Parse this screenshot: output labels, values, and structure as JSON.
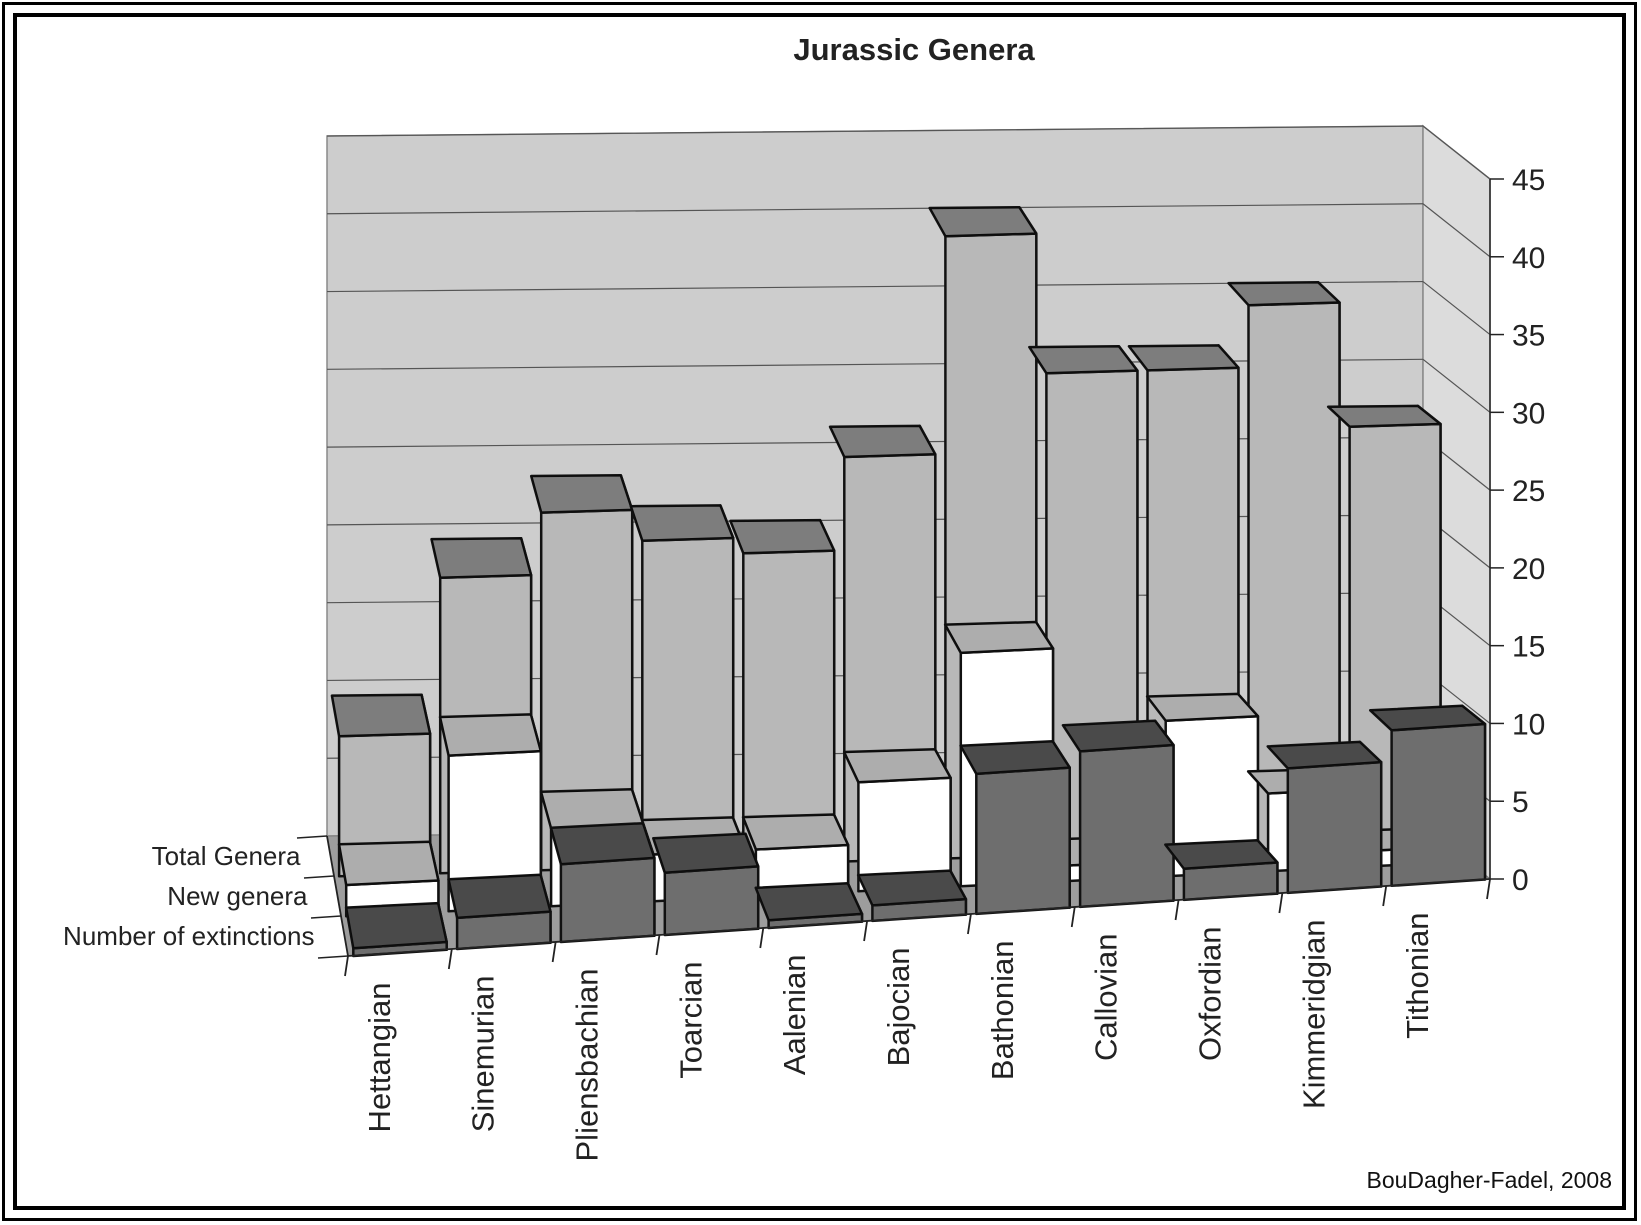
{
  "chart_data": {
    "type": "bar",
    "title": "Jurassic Genera",
    "categories": [
      "Hettangian",
      "Sinemurian",
      "Pliensbachian",
      "Toarcian",
      "Aalenian",
      "Bajocian",
      "Bathonian",
      "Callovian",
      "Oxfordian",
      "Kimmeridgian",
      "Tithonian"
    ],
    "series": [
      {
        "name": "Total Genera",
        "values": [
          9,
          19,
          23,
          21,
          20,
          26,
          40,
          31,
          31,
          35,
          27
        ],
        "color": "#b8b8b8"
      },
      {
        "name": "New genera",
        "values": [
          2,
          10,
          5,
          3,
          3,
          7,
          15,
          1,
          10,
          5,
          1
        ],
        "color": "#ffffff"
      },
      {
        "name": "Number of extinctions",
        "values": [
          0.5,
          2,
          5,
          4,
          0.5,
          1,
          9,
          10,
          2,
          8,
          10
        ],
        "color": "#6e6e6e"
      }
    ],
    "ylim": [
      0,
      45
    ],
    "yticks": [
      0,
      5,
      10,
      15,
      20,
      25,
      30,
      35,
      40,
      45
    ],
    "grid": true,
    "projection": "3d"
  },
  "source": "BouDagher-Fadel, 2008"
}
